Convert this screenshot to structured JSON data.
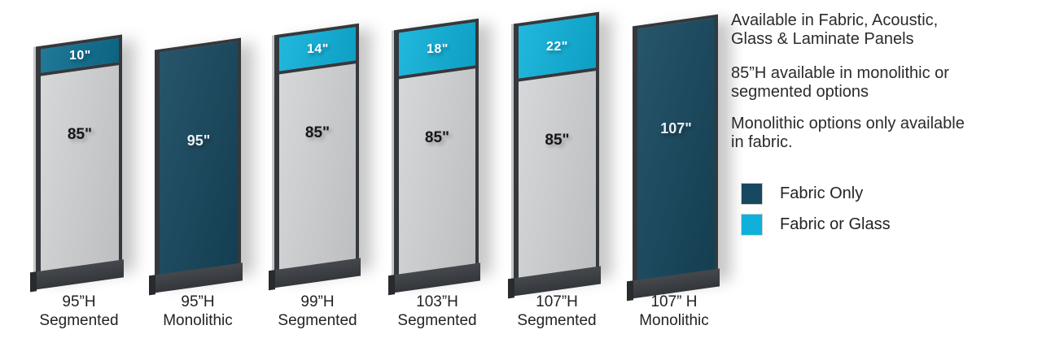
{
  "panels": [
    {
      "name": "95h-segmented",
      "type": "segmented",
      "caption_line1": "95”H",
      "caption_line2": "Segmented",
      "top_color": "#0D6E90",
      "top_segment": {
        "label": "10\"",
        "inches": 10
      },
      "main_segment": {
        "label": "85\"",
        "inches": 85
      }
    },
    {
      "name": "95h-monolithic",
      "type": "monolithic",
      "caption_line1": "95”H",
      "caption_line2": "Monolithic",
      "fill_color": "#17485F",
      "main_segment": {
        "label": "95\"",
        "inches": 95
      }
    },
    {
      "name": "99h-segmented",
      "type": "segmented",
      "caption_line1": "99”H",
      "caption_line2": "Segmented",
      "top_color": "#0FB1DA",
      "top_segment": {
        "label": "14\"",
        "inches": 14
      },
      "main_segment": {
        "label": "85\"",
        "inches": 85
      }
    },
    {
      "name": "103h-segmented",
      "type": "segmented",
      "caption_line1": "103”H",
      "caption_line2": "Segmented",
      "top_color": "#0FB1DA",
      "top_segment": {
        "label": "18\"",
        "inches": 18
      },
      "main_segment": {
        "label": "85\"",
        "inches": 85
      }
    },
    {
      "name": "107h-segmented",
      "type": "segmented",
      "caption_line1": "107”H",
      "caption_line2": "Segmented",
      "top_color": "#0FB1DA",
      "top_segment": {
        "label": "22\"",
        "inches": 22
      },
      "main_segment": {
        "label": "85\"",
        "inches": 85
      }
    },
    {
      "name": "107h-monolithic",
      "type": "monolithic",
      "caption_line1": "107” H",
      "caption_line2": "Monolithic",
      "fill_color": "#17485F",
      "main_segment": {
        "label": "107\"",
        "inches": 107
      }
    }
  ],
  "notes": [
    {
      "line1": "Available in Fabric, Acoustic,",
      "line2": "Glass & Laminate Panels"
    },
    {
      "line1": "85”H available in monolithic or",
      "line2": "segmented options"
    },
    {
      "line1": "Monolithic options only available",
      "line2": "in fabric."
    }
  ],
  "legend": [
    {
      "label": "Fabric Only",
      "color": "#17485F"
    },
    {
      "label": "Fabric or Glass",
      "color": "#0FB1DA"
    }
  ],
  "colors": {
    "fabric_only_navy": "#17485F",
    "fabric_or_glass_cyan": "#0FB1DA",
    "segment_10in_teal": "#0D6E90",
    "panel_gray": "#C9CACC",
    "frame_dark": "#35383C",
    "base_dark": "#3B3E42",
    "text_dark": "#232323"
  }
}
